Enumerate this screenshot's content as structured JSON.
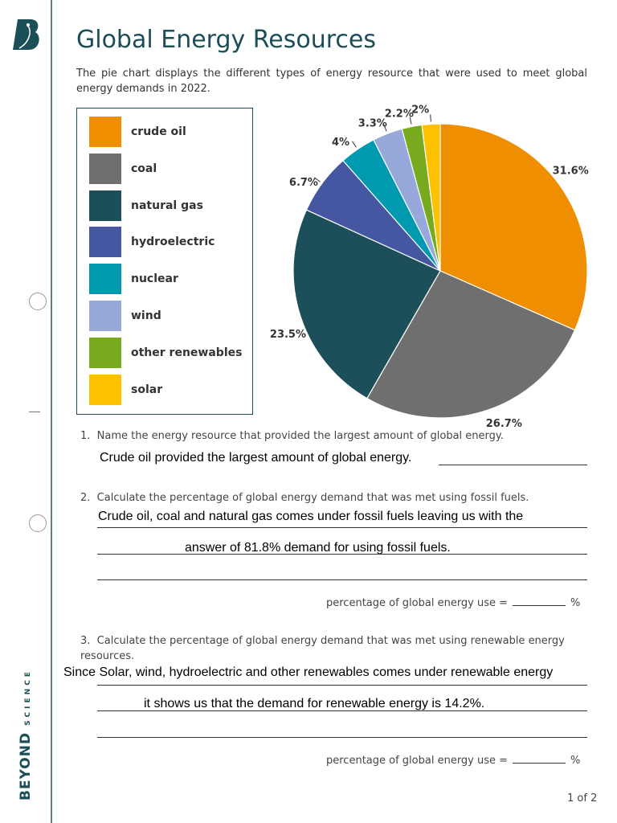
{
  "brand": {
    "word1": "BEYOND",
    "word2": "SCIENCE",
    "logo_letter": "B"
  },
  "title": "Global Energy Resources",
  "intro": "The pie chart displays the different types of energy resource that were used to meet global energy demands in 2022.",
  "colors": {
    "accent": "#1c4e58"
  },
  "chart_data": {
    "type": "pie",
    "start": "top",
    "direction": "clockwise",
    "legend": "left",
    "categories": [
      "crude oil",
      "coal",
      "natural gas",
      "hydroelectric",
      "nuclear",
      "wind",
      "other renewables",
      "solar"
    ],
    "values": [
      31.6,
      26.7,
      23.5,
      6.7,
      4,
      3.3,
      2.2,
      2
    ],
    "labels": [
      "31.6%",
      "26.7%",
      "23.5%",
      "6.7%",
      "4%",
      "3.3%",
      "2.2%",
      "2%"
    ],
    "colors": [
      "#ee8e00",
      "#6f6f6f",
      "#1c4f5a",
      "#4657a2",
      "#009ab0",
      "#97a8da",
      "#78aa20",
      "#ffc000"
    ]
  },
  "questions": [
    {
      "num": "1.",
      "text": "Name the energy resource that provided the largest amount of global energy.",
      "answers": [
        "Crude oil provided the largest amount of global energy."
      ]
    },
    {
      "num": "2.",
      "text": "Calculate the percentage of global energy demand that was met using fossil fuels.",
      "answers": [
        "Crude oil, coal and natural gas comes under fossil fuels leaving us with the",
        "answer of 81.8% demand for using fossil fuels."
      ],
      "result_label": "percentage of global energy use =",
      "unit": "%"
    },
    {
      "num": "3.",
      "text": "Calculate the percentage of global energy demand that was met using renewable energy resources.",
      "answers": [
        "Since Solar, wind, hydroelectric and other renewables comes under renewable energy",
        "it shows us that the demand for renewable energy is 14.2%."
      ],
      "result_label": "percentage of global energy use =",
      "unit": "%"
    }
  ],
  "page_number": "1 of 2"
}
